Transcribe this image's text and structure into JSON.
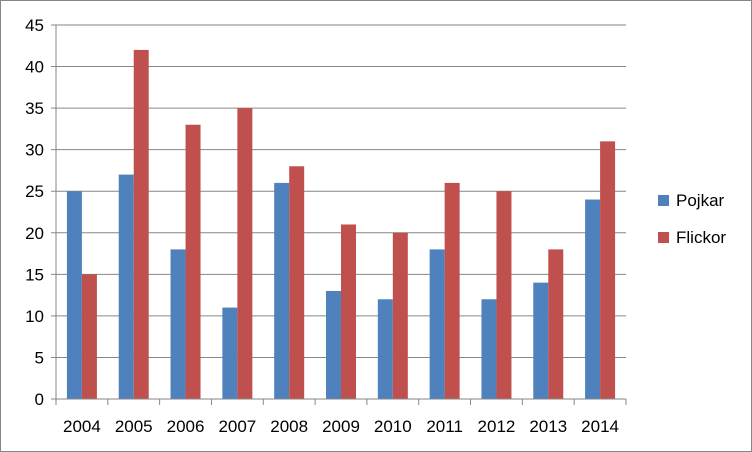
{
  "chart_data": {
    "type": "bar",
    "title": "",
    "xlabel": "",
    "ylabel": "",
    "categories": [
      "2004",
      "2005",
      "2006",
      "2007",
      "2008",
      "2009",
      "2010",
      "2011",
      "2012",
      "2013",
      "2014"
    ],
    "series": [
      {
        "name": "Pojkar",
        "color": "#4F81BD",
        "values": [
          25,
          27,
          18,
          11,
          26,
          13,
          12,
          18,
          12,
          14,
          24
        ]
      },
      {
        "name": "Flickor",
        "color": "#C0504D",
        "values": [
          15,
          42,
          33,
          35,
          28,
          21,
          20,
          26,
          25,
          18,
          31
        ]
      }
    ],
    "ylim": [
      0,
      45
    ],
    "yticks": [
      "0",
      "5",
      "10",
      "15",
      "20",
      "25",
      "30",
      "35",
      "40",
      "45"
    ],
    "grid": true,
    "legend_position": "right"
  }
}
